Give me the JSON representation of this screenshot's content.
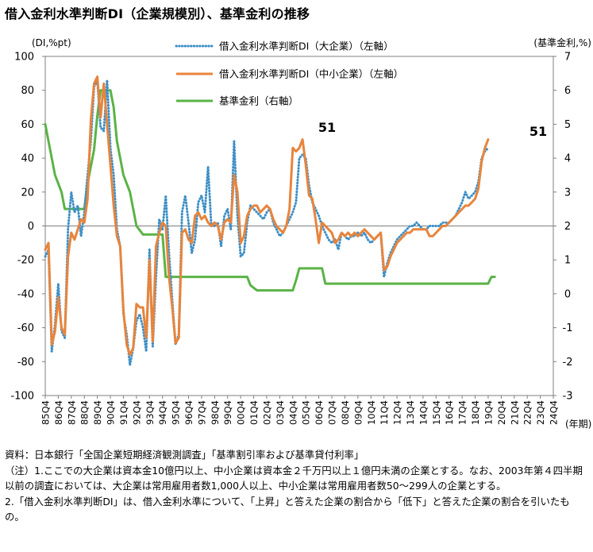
{
  "title": "借入金利水準判断DI（企業規模別）、基準金利の推移",
  "chart_data": {
    "type": "line",
    "left_axis_unit": "(DI,%pt)",
    "right_axis_unit": "(基準金利,%)",
    "x_axis_unit": "(年期)",
    "left_ylim": [
      -100,
      100
    ],
    "right_ylim": [
      -3,
      7
    ],
    "left_ticks": [
      "100",
      "80",
      "60",
      "40",
      "20",
      "0",
      "-20",
      "-40",
      "-60",
      "-80",
      "-100"
    ],
    "right_ticks": [
      "7",
      "6",
      "5",
      "4",
      "3",
      "2",
      "1",
      "0",
      "-1",
      "-2",
      "-3"
    ],
    "x_start": "85Q4",
    "x_tick_labels": [
      "85Q4",
      "86Q4",
      "87Q4",
      "88Q4",
      "89Q4",
      "90Q4",
      "91Q4",
      "92Q4",
      "93Q4",
      "94Q4",
      "95Q4",
      "96Q4",
      "97Q4",
      "98Q4",
      "99Q4",
      "00Q4",
      "01Q4",
      "02Q4",
      "03Q4",
      "04Q4",
      "05Q4",
      "06Q4",
      "07Q4",
      "08Q4",
      "09Q4",
      "10Q4",
      "11Q4",
      "12Q4",
      "13Q4",
      "14Q4",
      "15Q4",
      "16Q4",
      "17Q4",
      "18Q4",
      "19Q4",
      "20Q4",
      "21Q4",
      "22Q4",
      "23Q4",
      "24Q4"
    ],
    "grid": false,
    "legend_placement": "top-center",
    "annotations": [
      "51",
      "51"
    ],
    "series": [
      {
        "name": "借入金利水準判断DI（大企業）（左軸）",
        "axis": "left",
        "color": "#3d8fc6",
        "style": "dotted",
        "points": [
          [
            0,
            -18
          ],
          [
            1,
            -14
          ],
          [
            2,
            -74
          ],
          [
            3,
            -58
          ],
          [
            4,
            -34
          ],
          [
            5,
            -62
          ],
          [
            6,
            -66
          ],
          [
            7,
            -2
          ],
          [
            8,
            20
          ],
          [
            9,
            8
          ],
          [
            10,
            12
          ],
          [
            11,
            -6
          ],
          [
            12,
            8
          ],
          [
            13,
            30
          ],
          [
            14,
            50
          ],
          [
            15,
            82
          ],
          [
            16,
            86
          ],
          [
            17,
            58
          ],
          [
            18,
            56
          ],
          [
            19,
            86
          ],
          [
            20,
            46
          ],
          [
            21,
            30
          ],
          [
            22,
            -2
          ],
          [
            23,
            -12
          ],
          [
            24,
            -52
          ],
          [
            25,
            -64
          ],
          [
            26,
            -82
          ],
          [
            27,
            -72
          ],
          [
            28,
            -56
          ],
          [
            29,
            -52
          ],
          [
            30,
            -60
          ],
          [
            31,
            -74
          ],
          [
            32,
            -14
          ],
          [
            33,
            -71
          ],
          [
            34,
            -30
          ],
          [
            35,
            4
          ],
          [
            36,
            -2
          ],
          [
            37,
            18
          ],
          [
            38,
            -16
          ],
          [
            39,
            -44
          ],
          [
            40,
            -70
          ],
          [
            41,
            -64
          ],
          [
            42,
            8
          ],
          [
            43,
            18
          ],
          [
            44,
            2
          ],
          [
            45,
            -16
          ],
          [
            46,
            -8
          ],
          [
            47,
            14
          ],
          [
            48,
            18
          ],
          [
            49,
            8
          ],
          [
            50,
            35
          ],
          [
            51,
            0
          ],
          [
            52,
            0
          ],
          [
            53,
            2
          ],
          [
            54,
            -12
          ],
          [
            55,
            6
          ],
          [
            56,
            10
          ],
          [
            57,
            -2
          ],
          [
            58,
            50
          ],
          [
            59,
            6
          ],
          [
            60,
            -18
          ],
          [
            61,
            -16
          ],
          [
            62,
            2
          ],
          [
            63,
            12
          ],
          [
            64,
            10
          ],
          [
            65,
            8
          ],
          [
            66,
            6
          ],
          [
            67,
            4
          ],
          [
            68,
            8
          ],
          [
            69,
            10
          ],
          [
            70,
            2
          ],
          [
            71,
            -2
          ],
          [
            72,
            -6
          ],
          [
            73,
            -4
          ],
          [
            74,
            0
          ],
          [
            75,
            4
          ],
          [
            76,
            8
          ],
          [
            77,
            14
          ],
          [
            78,
            40
          ],
          [
            79,
            42
          ],
          [
            80,
            40
          ],
          [
            81,
            24
          ],
          [
            82,
            14
          ],
          [
            83,
            10
          ],
          [
            84,
            6
          ],
          [
            85,
            0
          ],
          [
            86,
            -4
          ],
          [
            87,
            -8
          ],
          [
            88,
            -10
          ],
          [
            89,
            -8
          ],
          [
            90,
            -14
          ],
          [
            91,
            -4
          ],
          [
            92,
            -6
          ],
          [
            93,
            -8
          ],
          [
            94,
            -6
          ],
          [
            95,
            -6
          ],
          [
            96,
            -4
          ],
          [
            97,
            -6
          ],
          [
            98,
            -4
          ],
          [
            99,
            -8
          ],
          [
            100,
            -10
          ],
          [
            101,
            -8
          ],
          [
            102,
            -6
          ],
          [
            103,
            -4
          ],
          [
            104,
            -30
          ],
          [
            105,
            -22
          ],
          [
            106,
            -16
          ],
          [
            107,
            -12
          ],
          [
            108,
            -8
          ],
          [
            109,
            -6
          ],
          [
            110,
            -4
          ],
          [
            111,
            -2
          ],
          [
            112,
            0
          ],
          [
            113,
            0
          ],
          [
            114,
            2
          ],
          [
            115,
            0
          ],
          [
            116,
            -2
          ],
          [
            117,
            -2
          ],
          [
            118,
            0
          ],
          [
            119,
            0
          ],
          [
            120,
            0
          ],
          [
            121,
            0
          ],
          [
            122,
            2
          ],
          [
            123,
            2
          ],
          [
            124,
            2
          ],
          [
            125,
            4
          ],
          [
            126,
            6
          ],
          [
            127,
            10
          ],
          [
            128,
            14
          ],
          [
            129,
            20
          ],
          [
            130,
            16
          ],
          [
            131,
            18
          ],
          [
            132,
            20
          ],
          [
            133,
            26
          ],
          [
            134,
            40
          ],
          [
            135,
            44
          ],
          [
            136,
            46
          ]
        ]
      },
      {
        "name": "借入金利水準判断DI（中小企業）（左軸）",
        "axis": "left",
        "color": "#e8843c",
        "style": "solid",
        "points": [
          [
            0,
            -14
          ],
          [
            1,
            -10
          ],
          [
            2,
            -70
          ],
          [
            3,
            -62
          ],
          [
            4,
            -42
          ],
          [
            5,
            -60
          ],
          [
            6,
            -64
          ],
          [
            7,
            -18
          ],
          [
            8,
            -4
          ],
          [
            9,
            -8
          ],
          [
            10,
            -2
          ],
          [
            11,
            4
          ],
          [
            12,
            2
          ],
          [
            13,
            16
          ],
          [
            14,
            62
          ],
          [
            15,
            84
          ],
          [
            16,
            88
          ],
          [
            17,
            64
          ],
          [
            18,
            84
          ],
          [
            19,
            60
          ],
          [
            20,
            36
          ],
          [
            21,
            12
          ],
          [
            22,
            -6
          ],
          [
            23,
            -12
          ],
          [
            24,
            -50
          ],
          [
            25,
            -70
          ],
          [
            26,
            -76
          ],
          [
            27,
            -72
          ],
          [
            28,
            -46
          ],
          [
            29,
            -48
          ],
          [
            30,
            -48
          ],
          [
            31,
            -66
          ],
          [
            32,
            -20
          ],
          [
            33,
            -68
          ],
          [
            34,
            -12
          ],
          [
            35,
            -4
          ],
          [
            36,
            2
          ],
          [
            37,
            0
          ],
          [
            38,
            -30
          ],
          [
            39,
            -48
          ],
          [
            40,
            -69
          ],
          [
            41,
            -66
          ],
          [
            42,
            -4
          ],
          [
            43,
            -2
          ],
          [
            44,
            -8
          ],
          [
            45,
            -10
          ],
          [
            46,
            6
          ],
          [
            47,
            8
          ],
          [
            48,
            4
          ],
          [
            49,
            6
          ],
          [
            50,
            2
          ],
          [
            51,
            0
          ],
          [
            52,
            2
          ],
          [
            53,
            0
          ],
          [
            54,
            -8
          ],
          [
            55,
            2
          ],
          [
            56,
            4
          ],
          [
            57,
            2
          ],
          [
            58,
            30
          ],
          [
            59,
            20
          ],
          [
            60,
            -10
          ],
          [
            61,
            -6
          ],
          [
            62,
            6
          ],
          [
            63,
            10
          ],
          [
            64,
            12
          ],
          [
            65,
            12
          ],
          [
            66,
            8
          ],
          [
            67,
            10
          ],
          [
            68,
            12
          ],
          [
            69,
            10
          ],
          [
            70,
            4
          ],
          [
            71,
            0
          ],
          [
            72,
            -2
          ],
          [
            73,
            -4
          ],
          [
            74,
            0
          ],
          [
            75,
            10
          ],
          [
            76,
            46
          ],
          [
            77,
            44
          ],
          [
            78,
            46
          ],
          [
            79,
            51
          ],
          [
            80,
            36
          ],
          [
            81,
            18
          ],
          [
            82,
            16
          ],
          [
            83,
            4
          ],
          [
            84,
            -10
          ],
          [
            85,
            2
          ],
          [
            86,
            0
          ],
          [
            87,
            -2
          ],
          [
            88,
            -4
          ],
          [
            89,
            -10
          ],
          [
            90,
            -8
          ],
          [
            91,
            -4
          ],
          [
            92,
            -6
          ],
          [
            93,
            -4
          ],
          [
            94,
            -6
          ],
          [
            95,
            -4
          ],
          [
            96,
            -6
          ],
          [
            97,
            -4
          ],
          [
            98,
            -2
          ],
          [
            99,
            -4
          ],
          [
            100,
            -6
          ],
          [
            101,
            -8
          ],
          [
            102,
            -6
          ],
          [
            103,
            -4
          ],
          [
            104,
            -26
          ],
          [
            105,
            -24
          ],
          [
            106,
            -18
          ],
          [
            107,
            -14
          ],
          [
            108,
            -10
          ],
          [
            109,
            -8
          ],
          [
            110,
            -6
          ],
          [
            111,
            -4
          ],
          [
            112,
            -4
          ],
          [
            113,
            -2
          ],
          [
            114,
            -2
          ],
          [
            115,
            -2
          ],
          [
            116,
            -2
          ],
          [
            117,
            -2
          ],
          [
            118,
            -6
          ],
          [
            119,
            -6
          ],
          [
            120,
            -4
          ],
          [
            121,
            -2
          ],
          [
            122,
            0
          ],
          [
            123,
            0
          ],
          [
            124,
            2
          ],
          [
            125,
            4
          ],
          [
            126,
            6
          ],
          [
            127,
            8
          ],
          [
            128,
            10
          ],
          [
            129,
            12
          ],
          [
            130,
            12
          ],
          [
            131,
            14
          ],
          [
            132,
            16
          ],
          [
            133,
            22
          ],
          [
            134,
            38
          ],
          [
            135,
            46
          ],
          [
            136,
            51
          ]
        ]
      },
      {
        "name": "基準金利（右軸）",
        "axis": "right",
        "color": "#5ab346",
        "style": "solid",
        "points": [
          [
            0,
            5.0
          ],
          [
            2,
            4.0
          ],
          [
            3,
            3.5
          ],
          [
            5,
            3.0
          ],
          [
            6,
            2.5
          ],
          [
            12,
            2.5
          ],
          [
            13,
            3.25
          ],
          [
            14,
            3.75
          ],
          [
            15,
            4.25
          ],
          [
            16,
            5.25
          ],
          [
            17,
            6.0
          ],
          [
            20,
            6.0
          ],
          [
            21,
            5.5
          ],
          [
            22,
            4.5
          ],
          [
            24,
            3.5
          ],
          [
            26,
            3.0
          ],
          [
            28,
            2.0
          ],
          [
            30,
            1.75
          ],
          [
            36,
            1.75
          ],
          [
            37,
            0.5
          ],
          [
            38,
            0.5
          ],
          [
            62,
            0.5
          ],
          [
            63,
            0.25
          ],
          [
            65,
            0.1
          ],
          [
            76,
            0.1
          ],
          [
            77,
            0.4
          ],
          [
            78,
            0.75
          ],
          [
            85,
            0.75
          ],
          [
            86,
            0.3
          ],
          [
            136,
            0.3
          ],
          [
            137,
            0.5
          ],
          [
            138,
            0.5
          ]
        ]
      }
    ]
  },
  "notes": [
    "資料：日本銀行「全国企業短期経済観測調査」「基準割引率および基準貸付利率」",
    "（注）1.ここでの大企業は資本金10億円以上、中小企業は資本金２千万円以上１億円未満の企業とする。なお、2003年第４四半期以前の調査においては、大企業は常用雇用者数1,000人以上、中小企業は常用雇用者数50～299人の企業とする。",
    "2.「借入金利水準判断DI」は、借入金利水準について、「上昇」と答えた企業の割合から「低下」と答えた企業の割合を引いたもの。"
  ]
}
